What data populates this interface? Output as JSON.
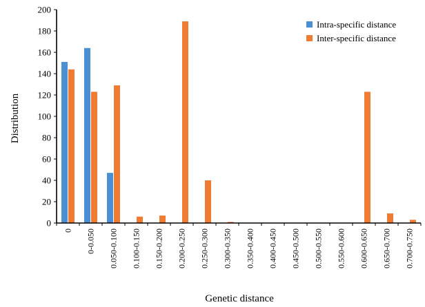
{
  "chart_data": {
    "type": "bar",
    "title": "",
    "xlabel": "Genetic distance",
    "ylabel": "Distribution",
    "ylim": [
      0,
      200
    ],
    "yticks": [
      0,
      20,
      40,
      60,
      80,
      100,
      120,
      140,
      160,
      180,
      200
    ],
    "categories": [
      "0",
      "0-0.050",
      "0.050-0.100",
      "0.100-0.150",
      "0.150-0.200",
      "0.200-0.250",
      "0.250-0.300",
      "0.300-0.350",
      "0.350-0.400",
      "0.400-0.450",
      "0.450-0.500",
      "0.500-0.550",
      "0.550-0.600",
      "0.600-0.650",
      "0.650-0.700",
      "0.700-0.750"
    ],
    "series": [
      {
        "name": "Intra-specific distance",
        "color": "#4a8fd4",
        "values": [
          151,
          164,
          47,
          0,
          0,
          0,
          0,
          0,
          0,
          0,
          0,
          0,
          0,
          0,
          0,
          0
        ]
      },
      {
        "name": "Inter-specific distance",
        "color": "#f07b33",
        "values": [
          144,
          123,
          129,
          6,
          7,
          189,
          40,
          1,
          0,
          0,
          0,
          0,
          0,
          123,
          9,
          3
        ]
      }
    ],
    "legend_position": "top-right",
    "grid": false
  }
}
